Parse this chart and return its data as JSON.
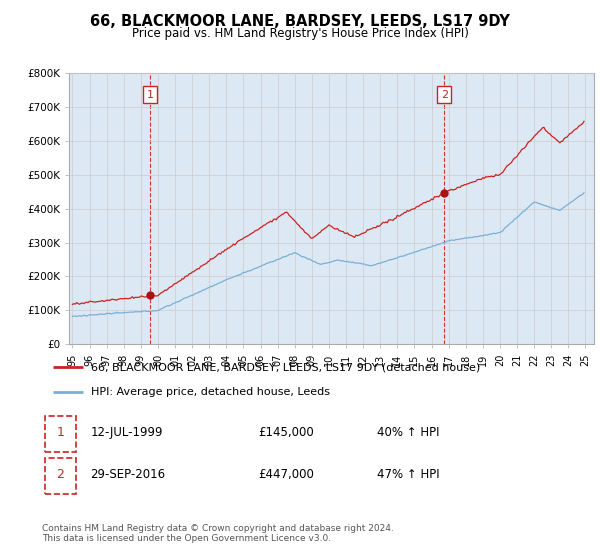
{
  "title": "66, BLACKMOOR LANE, BARDSEY, LEEDS, LS17 9DY",
  "subtitle": "Price paid vs. HM Land Registry's House Price Index (HPI)",
  "ylim": [
    0,
    800000
  ],
  "yticks": [
    0,
    100000,
    200000,
    300000,
    400000,
    500000,
    600000,
    700000,
    800000
  ],
  "ytick_labels": [
    "£0",
    "£100K",
    "£200K",
    "£300K",
    "£400K",
    "£500K",
    "£600K",
    "£700K",
    "£800K"
  ],
  "hpi_line_color": "#7ab0d4",
  "price_line_color": "#cc2222",
  "sale_marker_color": "#aa1111",
  "grid_color": "#cccccc",
  "plot_bg_color": "#dce9f5",
  "legend_entry1": "66, BLACKMOOR LANE, BARDSEY, LEEDS, LS17 9DY (detached house)",
  "legend_entry2": "HPI: Average price, detached house, Leeds",
  "table_row1": [
    "1",
    "12-JUL-1999",
    "£145,000",
    "40% ↑ HPI"
  ],
  "table_row2": [
    "2",
    "29-SEP-2016",
    "£447,000",
    "47% ↑ HPI"
  ],
  "footer": "Contains HM Land Registry data © Crown copyright and database right 2024.\nThis data is licensed under the Open Government Licence v3.0.",
  "sale1_year": 1999.54,
  "sale1_price": 145000,
  "sale2_year": 2016.75,
  "sale2_price": 447000,
  "x_start_year": 1995,
  "x_end_year": 2025
}
